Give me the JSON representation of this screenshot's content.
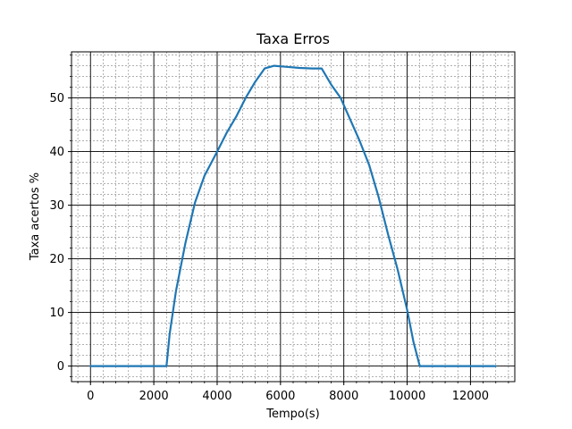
{
  "chart_data": {
    "type": "line",
    "title": "Taxa Erros",
    "xlabel": "Tempo(s)",
    "ylabel": "Taxa acertos %",
    "xlim": [
      -600,
      13400
    ],
    "ylim": [
      -2.9,
      58.6
    ],
    "x_ticks": [
      0,
      2000,
      4000,
      6000,
      8000,
      10000,
      12000
    ],
    "y_ticks": [
      0,
      10,
      20,
      30,
      40,
      50
    ],
    "x_tick_labels": [
      "0",
      "2000",
      "4000",
      "6000",
      "8000",
      "10000",
      "12000"
    ],
    "y_tick_labels": [
      "0",
      "10",
      "20",
      "30",
      "40",
      "50"
    ],
    "x_minor_step": 400,
    "y_minor_step": 2,
    "grid": true,
    "series": [
      {
        "color": "#1f77b4",
        "x": [
          0,
          500,
          1000,
          1500,
          2000,
          2400,
          2500,
          2700,
          3000,
          3300,
          3600,
          4000,
          4300,
          4600,
          4900,
          5200,
          5500,
          5800,
          6200,
          6600,
          7000,
          7300,
          7600,
          7900,
          8200,
          8500,
          8800,
          9100,
          9400,
          9700,
          10000,
          10200,
          10400,
          10600,
          11000,
          11500,
          12000,
          12500,
          12800
        ],
        "y": [
          0,
          0,
          0,
          0,
          0,
          0,
          6,
          14,
          23,
          30.5,
          35.5,
          40,
          43.5,
          46.5,
          50,
          53,
          55.5,
          56,
          55.8,
          55.6,
          55.5,
          55.5,
          52.5,
          50,
          46,
          42,
          37.5,
          31.5,
          24.5,
          18,
          10.5,
          4.5,
          0,
          0,
          0,
          0,
          0,
          0,
          0
        ]
      }
    ]
  }
}
